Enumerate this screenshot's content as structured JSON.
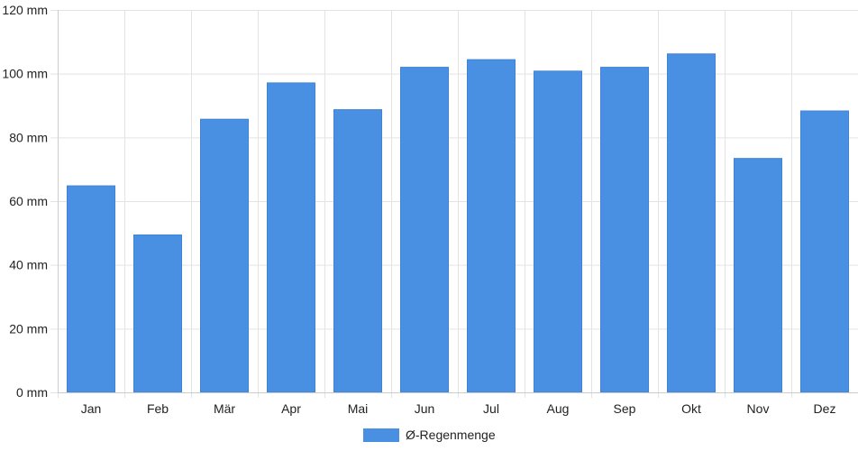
{
  "chart_data": {
    "type": "bar",
    "categories": [
      "Jan",
      "Feb",
      "Mär",
      "Apr",
      "Mai",
      "Jun",
      "Jul",
      "Aug",
      "Sep",
      "Okt",
      "Nov",
      "Dez"
    ],
    "series": [
      {
        "name": "Ø-Regenmenge",
        "values": [
          64.8,
          49.4,
          85.7,
          97.1,
          88.7,
          102.0,
          104.4,
          100.8,
          102.0,
          106.2,
          73.4,
          88.3
        ],
        "color": "#4a90e2"
      }
    ],
    "ylim": [
      0,
      120
    ],
    "yticks": [
      0,
      20,
      40,
      60,
      80,
      100,
      120
    ],
    "y_unit": "mm",
    "grid": true,
    "legend_position": "bottom-center"
  }
}
